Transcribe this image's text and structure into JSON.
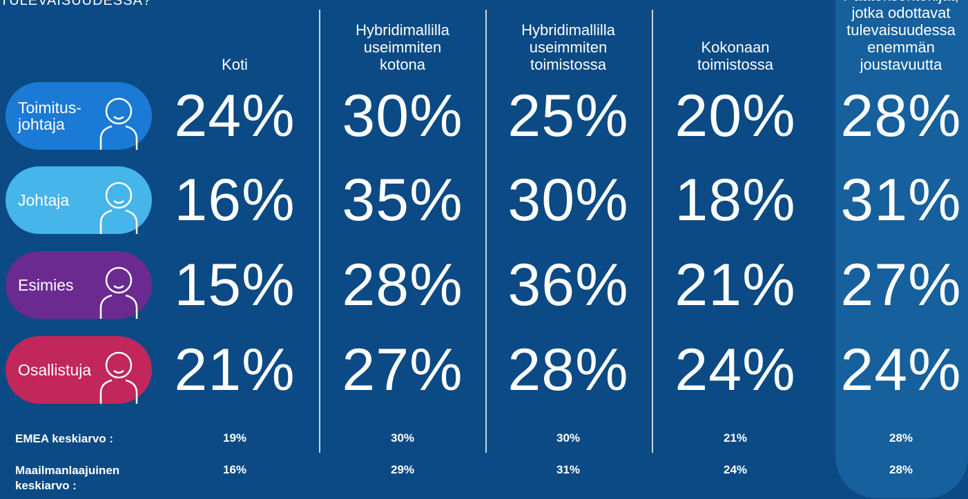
{
  "header": {
    "title": "TULEVAISUUDESSA?"
  },
  "columns": [
    "Koti",
    "Hybridimallilla\nuseimmiten\nkotona",
    "Hybridimallilla\nuseimmiten\ntoimistossa",
    "Kokonaan\ntoimistossa",
    "Päätöksentekijät,\njotka odottavat\ntulevaisuudessa\nenemmän\njoustavuutta"
  ],
  "rows": [
    {
      "label": "Toimitus-\njohtaja",
      "values": [
        "24%",
        "30%",
        "25%",
        "20%",
        "28%"
      ]
    },
    {
      "label": "Johtaja",
      "values": [
        "16%",
        "35%",
        "30%",
        "18%",
        "31%"
      ]
    },
    {
      "label": "Esimies",
      "values": [
        "15%",
        "28%",
        "36%",
        "21%",
        "27%"
      ]
    },
    {
      "label": "Osallistuja",
      "values": [
        "21%",
        "27%",
        "28%",
        "24%",
        "24%"
      ]
    }
  ],
  "averages": [
    {
      "label": "EMEA keskiarvo :",
      "values": [
        "19%",
        "30%",
        "30%",
        "21%",
        "28%"
      ]
    },
    {
      "label": "Maailmanlaajuinen\nkeskiarvo :",
      "values": [
        "16%",
        "29%",
        "31%",
        "24%",
        "28%"
      ]
    }
  ]
}
